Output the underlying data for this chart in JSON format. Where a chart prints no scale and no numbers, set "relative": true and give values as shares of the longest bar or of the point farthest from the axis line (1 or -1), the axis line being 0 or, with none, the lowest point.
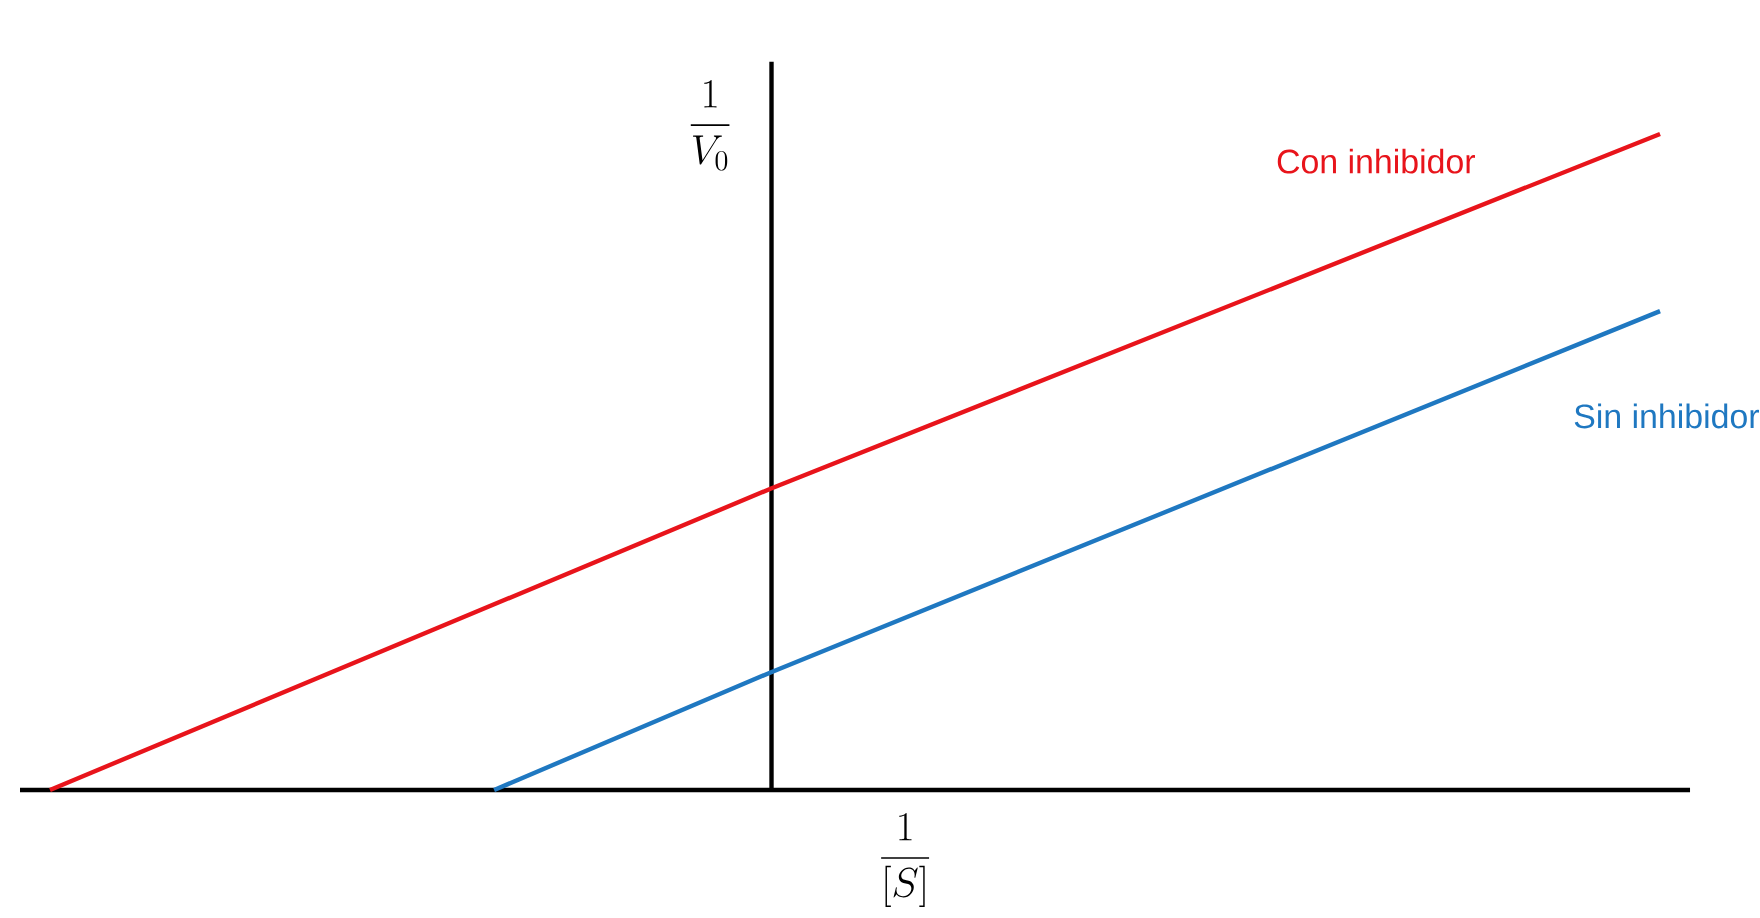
{
  "chart_data": {
    "type": "line",
    "relative": true,
    "legend": false,
    "xlabel": "\\frac{1}{[S]}",
    "ylabel": "\\frac{1}{V_0}",
    "categories": [
      null,
      null,
      null,
      null,
      null,
      null,
      null,
      null,
      null,
      null,
      null,
      null,
      null,
      null,
      null,
      null,
      null,
      null,
      null,
      null,
      null,
      null,
      null,
      null,
      null,
      null,
      null,
      null,
      null,
      null
    ],
    "series": [
      {
        "name": "Con inhibidor",
        "color": "#e8141b",
        "values": [
          0,
          null,
          null,
          null,
          null,
          null,
          null,
          null,
          null,
          null,
          null,
          null,
          null,
          0.46,
          null,
          null,
          null,
          null,
          null,
          null,
          null,
          null,
          null,
          null,
          null,
          null,
          null,
          null,
          null,
          1
        ]
      },
      {
        "name": "Sin inhibidor",
        "color": "#1f78c1",
        "values": [
          null,
          null,
          null,
          null,
          null,
          null,
          null,
          null,
          0,
          null,
          null,
          null,
          null,
          0.18,
          null,
          null,
          null,
          null,
          null,
          null,
          null,
          null,
          null,
          null,
          null,
          null,
          null,
          null,
          null,
          0.73
        ]
      }
    ]
  }
}
